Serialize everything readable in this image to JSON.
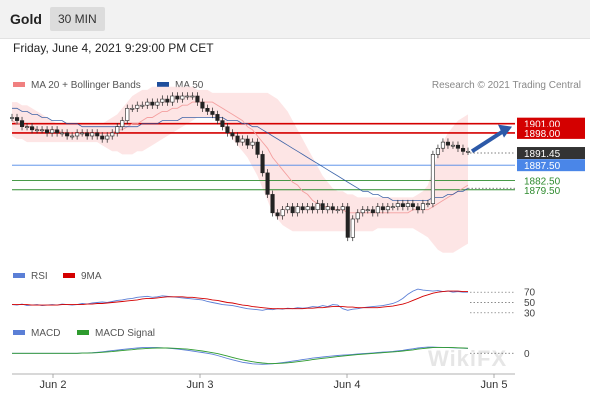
{
  "header": {
    "symbol": "Gold",
    "timeframe": "30 MIN"
  },
  "datetime": "Friday, June 4, 2021 9:29:00 PM CET",
  "credit": "Research © 2021 Trading Central",
  "watermark": "WikiFX",
  "colors": {
    "bollinger": "#f08080",
    "ma20": "#f4a0a0",
    "ma50": "#1f4e9c",
    "resistance": "#d40000",
    "current": "#333333",
    "support": "#4a86e8",
    "green": "#2e8b2e",
    "rsi": "#5b7fd6",
    "rsi9ma": "#d40000",
    "macd": "#5b7fd6",
    "macd_signal": "#2e9b2e",
    "arrow": "#2c59a8"
  },
  "legends": {
    "main": [
      {
        "label": "MA 20 + Bollinger Bands",
        "color": "#f08080"
      },
      {
        "label": "MA 50",
        "color": "#1f4e9c"
      }
    ],
    "rsi": [
      {
        "label": "RSI",
        "color": "#5b7fd6"
      },
      {
        "label": "9MA",
        "color": "#d40000"
      }
    ],
    "macd": [
      {
        "label": "MACD",
        "color": "#5b7fd6"
      },
      {
        "label": "MACD Signal",
        "color": "#2e9b2e"
      }
    ]
  },
  "chart_data": [
    {
      "type": "candlestick",
      "instrument": "Gold",
      "timeframe": "30 MIN",
      "x_labels": [
        "Jun 2",
        "Jun 3",
        "Jun 4",
        "Jun 5"
      ],
      "ylim": [
        1856,
        1910
      ],
      "price_levels": [
        {
          "label": "1901.00",
          "value": 1901.0,
          "kind": "resistance"
        },
        {
          "label": "1898.00",
          "value": 1898.0,
          "kind": "resistance"
        },
        {
          "label": "1891.45",
          "value": 1891.45,
          "kind": "current"
        },
        {
          "label": "1887.50",
          "value": 1887.5,
          "kind": "support"
        },
        {
          "label": "1882.50",
          "value": 1882.5,
          "kind": "support-green"
        },
        {
          "label": "1879.50",
          "value": 1879.5,
          "kind": "support-green"
        }
      ],
      "close": [
        1903,
        1902,
        1900,
        1900,
        1899,
        1899,
        1899,
        1898,
        1899,
        1898,
        1898,
        1897,
        1897,
        1898,
        1898,
        1897,
        1898,
        1897,
        1896,
        1897,
        1898,
        1900,
        1902,
        1906,
        1906,
        1907,
        1907,
        1908,
        1907,
        1908,
        1909,
        1908,
        1910,
        1909,
        1910,
        1910,
        1910,
        1908,
        1906,
        1905,
        1904,
        1902,
        1900,
        1898,
        1897,
        1895,
        1896,
        1894,
        1895,
        1891,
        1885,
        1878,
        1872,
        1871,
        1873,
        1874,
        1872,
        1874,
        1873,
        1874,
        1873,
        1875,
        1873,
        1874,
        1873,
        1873,
        1874,
        1864,
        1870,
        1872,
        1873,
        1873,
        1872,
        1874,
        1873,
        1874,
        1874,
        1875,
        1874,
        1875,
        1874,
        1873,
        1875,
        1875,
        1891,
        1893,
        1895,
        1894,
        1894,
        1893,
        1892,
        1892
      ],
      "ma20": [
        1902,
        1901,
        1901,
        1900,
        1900,
        1899,
        1899,
        1899,
        1899,
        1899,
        1898,
        1898,
        1898,
        1898,
        1898,
        1898,
        1898,
        1898,
        1898,
        1898,
        1898,
        1899,
        1899,
        1900,
        1901,
        1901,
        1902,
        1903,
        1903,
        1904,
        1905,
        1905,
        1906,
        1906,
        1907,
        1907,
        1908,
        1908,
        1908,
        1908,
        1908,
        1907,
        1906,
        1905,
        1904,
        1903,
        1902,
        1900,
        1899,
        1897,
        1895,
        1893,
        1890,
        1888,
        1886,
        1884,
        1882,
        1881,
        1879,
        1878,
        1876,
        1875,
        1874,
        1874,
        1873,
        1873,
        1873,
        1872,
        1872,
        1872,
        1872,
        1872,
        1872,
        1872,
        1872,
        1872,
        1872,
        1872,
        1872,
        1872,
        1873,
        1873,
        1873,
        1873,
        1874,
        1875,
        1876,
        1877,
        1878,
        1879,
        1880,
        1881
      ],
      "ma50": [
        1906,
        1906,
        1905,
        1905,
        1904,
        1904,
        1903,
        1903,
        1902,
        1902,
        1902,
        1901,
        1901,
        1901,
        1900,
        1900,
        1900,
        1900,
        1900,
        1900,
        1900,
        1900,
        1900,
        1900,
        1900,
        1900,
        1901,
        1901,
        1901,
        1901,
        1902,
        1902,
        1902,
        1902,
        1903,
        1903,
        1903,
        1903,
        1903,
        1903,
        1903,
        1903,
        1903,
        1902,
        1902,
        1902,
        1901,
        1901,
        1900,
        1900,
        1899,
        1898,
        1897,
        1896,
        1895,
        1894,
        1893,
        1892,
        1891,
        1890,
        1889,
        1888,
        1887,
        1886,
        1885,
        1884,
        1883,
        1882,
        1881,
        1880,
        1879,
        1879,
        1878,
        1878,
        1877,
        1877,
        1876,
        1876,
        1876,
        1876,
        1876,
        1876,
        1876,
        1876,
        1877,
        1877,
        1877,
        1878,
        1878,
        1879,
        1879,
        1880
      ],
      "bollinger_upper": [
        1908,
        1908,
        1907,
        1907,
        1906,
        1905,
        1904,
        1903,
        1902,
        1901,
        1901,
        1901,
        1901,
        1901,
        1901,
        1901,
        1901,
        1901,
        1901,
        1902,
        1903,
        1904,
        1906,
        1908,
        1910,
        1911,
        1912,
        1912,
        1913,
        1913,
        1913,
        1913,
        1913,
        1913,
        1913,
        1913,
        1913,
        1912,
        1912,
        1912,
        1911,
        1911,
        1911,
        1911,
        1911,
        1911,
        1911,
        1911,
        1911,
        1911,
        1911,
        1911,
        1910,
        1909,
        1907,
        1905,
        1902,
        1899,
        1896,
        1893,
        1890,
        1887,
        1884,
        1882,
        1880,
        1879,
        1879,
        1878,
        1878,
        1877,
        1877,
        1877,
        1877,
        1877,
        1877,
        1877,
        1877,
        1877,
        1877,
        1877,
        1877,
        1878,
        1879,
        1881,
        1886,
        1891,
        1895,
        1898,
        1900,
        1902,
        1903,
        1904
      ],
      "bollinger_lower": [
        1897,
        1896,
        1896,
        1895,
        1895,
        1895,
        1895,
        1895,
        1895,
        1895,
        1895,
        1895,
        1895,
        1895,
        1895,
        1895,
        1895,
        1895,
        1894,
        1893,
        1892,
        1892,
        1891,
        1891,
        1891,
        1892,
        1892,
        1893,
        1894,
        1895,
        1896,
        1897,
        1898,
        1899,
        1900,
        1901,
        1902,
        1903,
        1903,
        1903,
        1903,
        1902,
        1900,
        1898,
        1896,
        1894,
        1892,
        1890,
        1887,
        1884,
        1880,
        1876,
        1872,
        1870,
        1868,
        1867,
        1866,
        1866,
        1866,
        1866,
        1866,
        1866,
        1866,
        1866,
        1866,
        1866,
        1866,
        1866,
        1866,
        1866,
        1866,
        1866,
        1866,
        1867,
        1867,
        1867,
        1867,
        1867,
        1867,
        1867,
        1867,
        1866,
        1865,
        1864,
        1862,
        1860,
        1859,
        1859,
        1859,
        1860,
        1861,
        1862
      ],
      "projection": {
        "from": 1892,
        "to": 1901.0
      }
    },
    {
      "type": "line",
      "name": "RSI",
      "ylim": [
        20,
        80
      ],
      "ticks": [
        30,
        50,
        70
      ],
      "series": [
        {
          "name": "RSI",
          "values": [
            46,
            45,
            47,
            44,
            45,
            46,
            44,
            45,
            46,
            45,
            47,
            46,
            45,
            46,
            48,
            47,
            49,
            50,
            51,
            50,
            52,
            54,
            55,
            57,
            58,
            60,
            61,
            62,
            60,
            61,
            63,
            62,
            61,
            60,
            59,
            58,
            57,
            56,
            55,
            52,
            50,
            48,
            46,
            45,
            44,
            42,
            40,
            38,
            37,
            36,
            35,
            37,
            36,
            38,
            37,
            39,
            38,
            40,
            39,
            40,
            42,
            41,
            44,
            42,
            46,
            45,
            38,
            35,
            37,
            38,
            40,
            41,
            42,
            43,
            44,
            46,
            48,
            52,
            58,
            66,
            72,
            76,
            74,
            73,
            72,
            73,
            71,
            72,
            70,
            71,
            70,
            70
          ]
        },
        {
          "name": "9MA",
          "values": [
            46,
            46,
            46,
            46,
            45,
            45,
            45,
            45,
            45,
            45,
            46,
            46,
            46,
            46,
            46,
            47,
            47,
            48,
            48,
            49,
            50,
            51,
            52,
            53,
            54,
            55,
            57,
            58,
            58,
            59,
            60,
            61,
            61,
            61,
            61,
            60,
            60,
            59,
            58,
            57,
            55,
            54,
            52,
            50,
            49,
            47,
            45,
            44,
            42,
            41,
            40,
            39,
            38,
            38,
            38,
            38,
            38,
            38,
            38,
            39,
            39,
            40,
            40,
            41,
            42,
            42,
            42,
            41,
            41,
            40,
            40,
            40,
            40,
            40,
            41,
            42,
            43,
            45,
            47,
            50,
            54,
            58,
            62,
            65,
            68,
            70,
            71,
            72,
            72,
            72,
            71,
            71
          ]
        }
      ]
    },
    {
      "type": "line",
      "name": "MACD",
      "ylim": [
        -10,
        6
      ],
      "ticks": [
        0
      ],
      "series": [
        {
          "name": "MACD",
          "values": [
            0,
            0,
            0,
            0,
            0,
            0,
            0,
            0,
            0,
            0,
            0,
            0,
            0,
            0,
            0.1,
            0.2,
            0.3,
            0.5,
            0.8,
            1.1,
            1.4,
            1.7,
            2.0,
            2.3,
            2.6,
            2.8,
            3.0,
            3.1,
            3.1,
            3.0,
            2.9,
            2.7,
            2.5,
            2.2,
            1.9,
            1.6,
            1.2,
            0.8,
            0.4,
            0,
            -0.5,
            -1.2,
            -2.0,
            -2.8,
            -3.5,
            -4.2,
            -4.8,
            -5.2,
            -5.6,
            -5.8,
            -5.9,
            -5.8,
            -5.6,
            -5.3,
            -5.0,
            -4.6,
            -4.2,
            -3.8,
            -3.4,
            -3.0,
            -2.6,
            -2.3,
            -2.0,
            -1.7,
            -1.4,
            -1.2,
            -1.0,
            -0.8,
            -0.6,
            -0.4,
            -0.2,
            0,
            0.2,
            0.4,
            0.6,
            0.8,
            1.0,
            1.3,
            1.6,
            2.0,
            2.4,
            2.8,
            3.1,
            3.3,
            3.3,
            3.2,
            3.1,
            3.0,
            2.9,
            2.8,
            2.7,
            2.6
          ]
        },
        {
          "name": "MACD Signal",
          "values": [
            0,
            0,
            0,
            0,
            0,
            0,
            0,
            0,
            0,
            0,
            0,
            0,
            0,
            0,
            0.1,
            0.1,
            0.2,
            0.3,
            0.5,
            0.7,
            0.9,
            1.2,
            1.4,
            1.7,
            1.9,
            2.2,
            2.4,
            2.6,
            2.7,
            2.8,
            2.8,
            2.8,
            2.7,
            2.6,
            2.4,
            2.2,
            1.9,
            1.6,
            1.2,
            0.8,
            0.3,
            -0.2,
            -0.8,
            -1.5,
            -2.2,
            -2.9,
            -3.5,
            -4.0,
            -4.5,
            -4.9,
            -5.2,
            -5.4,
            -5.5,
            -5.4,
            -5.3,
            -5.1,
            -4.8,
            -4.5,
            -4.2,
            -3.8,
            -3.4,
            -3.0,
            -2.7,
            -2.4,
            -2.1,
            -1.8,
            -1.5,
            -1.2,
            -1.0,
            -0.7,
            -0.5,
            -0.3,
            -0.1,
            0.1,
            0.3,
            0.5,
            0.7,
            0.9,
            1.2,
            1.5,
            1.8,
            2.2,
            2.5,
            2.8,
            3.0,
            3.1,
            3.1,
            3.1,
            3.0,
            2.9,
            2.8,
            2.7
          ]
        }
      ]
    }
  ]
}
